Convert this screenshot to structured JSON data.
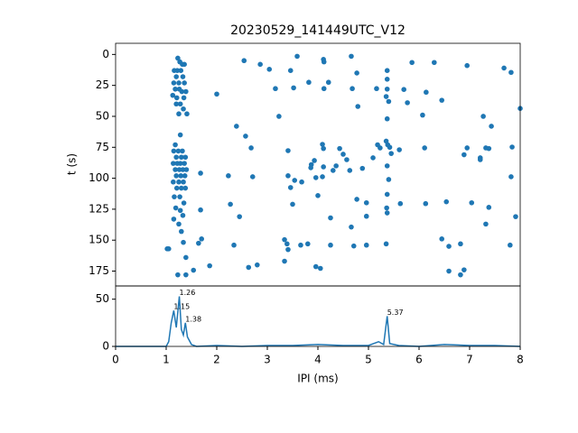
{
  "chart_data": [
    {
      "type": "scatter",
      "title": "20230529_141449UTC_V12",
      "y_label": "t (s)",
      "color": "#1f77b4",
      "x": [
        2.54,
        2.86,
        3.04,
        3.59,
        3.46,
        4.11,
        4.12,
        4.66,
        4.77,
        5.86,
        6.3,
        6.95,
        7.68,
        7.82,
        3.16,
        3.52,
        3.82,
        4.12,
        4.21,
        4.68,
        4.79,
        5.16,
        5.7,
        5.77,
        6.14,
        6.07,
        6.45,
        2.0,
        2.39,
        2.57,
        2.68,
        3.23,
        7.27,
        7.43,
        8.0,
        4.09,
        4.11,
        3.41,
        4.43,
        4.5,
        4.57,
        5.18,
        5.23,
        5.61,
        6.11,
        6.89,
        6.95,
        7.32,
        7.38,
        7.84,
        3.93,
        3.87,
        4.11,
        3.86,
        4.36,
        3.96,
        4.09,
        4.3,
        4.63,
        4.88,
        5.09,
        3.41,
        3.46,
        3.54,
        2.71,
        2.23,
        1.68,
        4.0,
        3.68,
        7.21,
        7.21,
        7.82,
        2.27,
        2.45,
        1.68,
        4.25,
        4.77,
        4.96,
        4.96,
        4.66,
        5.63,
        6.13,
        6.54,
        7.04,
        7.38,
        7.32,
        7.91,
        3.5,
        7.8,
        6.45,
        6.59,
        6.82,
        6.59,
        6.82,
        6.89,
        4.96,
        4.71,
        4.25,
        3.8,
        3.66,
        3.39,
        3.34,
        3.41,
        3.34,
        3.96,
        4.05,
        2.34,
        2.8,
        2.63,
        1.86,
        1.7,
        1.64,
        1.34,
        1.39,
        1.54,
        1.23,
        1.39,
        1.02,
        1.05,
        1.23,
        1.27,
        1.32,
        1.36,
        1.16,
        1.22,
        1.29,
        1.2,
        1.33,
        1.15,
        1.25,
        1.36,
        1.18,
        1.26,
        1.31,
        1.39,
        1.13,
        1.21,
        1.35,
        1.2,
        1.28,
        1.34,
        1.25,
        1.41,
        1.28,
        1.18,
        1.15,
        1.24,
        1.32,
        1.2,
        1.3,
        1.38,
        1.14,
        1.22,
        1.28,
        1.36,
        1.18,
        1.26,
        1.33,
        1.4,
        1.2,
        1.29,
        1.37,
        1.14,
        1.25,
        1.34,
        1.21,
        1.3,
        1.38,
        1.16,
        1.27,
        1.35,
        1.19,
        1.28,
        1.33,
        1.15,
        1.25,
        1.3,
        5.37,
        5.37,
        5.37,
        5.35,
        5.4,
        5.37,
        5.35,
        5.38,
        5.42,
        5.45,
        5.37,
        5.4,
        5.37,
        5.36,
        5.37,
        5.35
      ],
      "y": [
        5,
        8,
        12,
        1.5,
        13,
        4,
        6,
        1.5,
        15,
        6.5,
        6.5,
        9,
        11,
        14.5,
        27.6,
        27,
        22.5,
        27.6,
        22.5,
        27.6,
        42,
        27.6,
        28.3,
        39,
        30.5,
        49,
        37,
        32,
        58,
        66,
        75.5,
        50,
        50,
        58,
        43.6,
        72.6,
        76,
        77.7,
        76,
        80.6,
        85,
        73,
        75.5,
        77,
        75.5,
        81,
        75.5,
        75.5,
        76,
        74.8,
        85.7,
        89,
        90.8,
        91.5,
        90,
        99.5,
        98.8,
        93.7,
        93.7,
        92,
        83.5,
        98,
        107.5,
        101.7,
        98.8,
        98,
        95.9,
        114,
        103,
        83.5,
        85,
        98.8,
        121,
        131,
        125.6,
        132,
        117,
        119.8,
        130.7,
        139.4,
        120.5,
        120.5,
        119,
        119.8,
        123.5,
        137,
        131,
        121,
        154,
        149,
        155,
        153,
        175,
        178,
        174,
        154,
        154.7,
        154,
        153,
        154,
        153,
        149.6,
        157.6,
        167,
        171.4,
        172.8,
        154,
        170,
        172,
        170.7,
        149,
        152.5,
        151.8,
        164,
        174.3,
        178,
        178,
        157,
        157,
        3,
        6,
        8,
        8,
        13,
        13,
        13,
        18,
        18,
        23,
        23,
        23,
        28,
        28,
        30,
        30,
        33,
        35,
        35,
        40,
        40,
        44,
        48,
        48,
        65,
        73,
        78,
        78,
        78,
        83,
        83,
        83,
        88,
        88,
        88,
        88,
        93,
        93,
        93,
        93,
        98,
        98,
        98,
        103,
        103,
        103,
        108,
        108,
        108,
        115,
        115,
        120,
        124,
        126,
        130,
        133,
        137,
        143,
        13,
        20,
        28,
        34,
        38,
        52,
        70,
        73,
        75,
        80,
        90,
        101,
        113,
        124,
        128,
        153
      ],
      "xlim": [
        0,
        8
      ],
      "ylim": [
        187,
        -9
      ],
      "yticks": [
        0,
        25,
        50,
        75,
        100,
        125,
        150,
        175
      ]
    },
    {
      "type": "line",
      "x_label": "IPI (ms)",
      "color": "#1f77b4",
      "x": [
        0,
        0.95,
        1.0,
        1.05,
        1.1,
        1.15,
        1.2,
        1.26,
        1.3,
        1.34,
        1.38,
        1.42,
        1.5,
        1.6,
        2,
        2.5,
        3,
        3.5,
        4,
        4.5,
        5,
        5.2,
        5.3,
        5.37,
        5.42,
        5.6,
        6,
        6.5,
        7,
        7.5,
        8
      ],
      "y": [
        0,
        0,
        0,
        5,
        25,
        38,
        20,
        53,
        18,
        12,
        25,
        10,
        2,
        0,
        1,
        0,
        1,
        1,
        2,
        1,
        1,
        5,
        2,
        32,
        3,
        1,
        0,
        2,
        1,
        1,
        0
      ],
      "annotations": [
        {
          "x": 1.15,
          "y": 38,
          "label": "1.15"
        },
        {
          "x": 1.26,
          "y": 53,
          "label": "1.26"
        },
        {
          "x": 1.38,
          "y": 25,
          "label": "1.38"
        },
        {
          "x": 5.37,
          "y": 32,
          "label": "5.37"
        }
      ],
      "xlim": [
        0,
        8
      ],
      "xticks": [
        0,
        1,
        2,
        3,
        4,
        5,
        6,
        7,
        8
      ],
      "ylim": [
        0,
        64
      ],
      "yticks": [
        0,
        50
      ]
    }
  ]
}
